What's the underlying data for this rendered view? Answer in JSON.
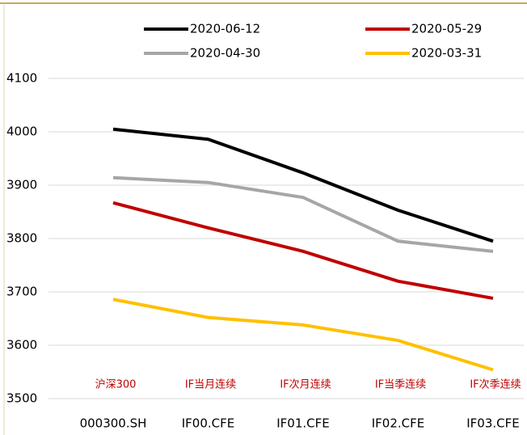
{
  "chart_data": {
    "type": "line",
    "categories": [
      "000300.SH",
      "IF00.CFE",
      "IF01.CFE",
      "IF02.CFE",
      "IF03.CFE"
    ],
    "annotations": [
      "沪深300",
      "IF当月连续",
      "IF次月连续",
      "IF当季连续",
      "IF次季连续"
    ],
    "annotation_color": "#c00000",
    "series": [
      {
        "name": "2020-06-12",
        "color": "#000000",
        "values": [
          4005,
          3986,
          3923,
          3853,
          3795
        ]
      },
      {
        "name": "2020-05-29",
        "color": "#c00000",
        "values": [
          3867,
          3820,
          3776,
          3720,
          3688
        ]
      },
      {
        "name": "2020-04-30",
        "color": "#a6a6a6",
        "values": [
          3914,
          3905,
          3877,
          3795,
          3776
        ]
      },
      {
        "name": "2020-03-31",
        "color": "#ffc000",
        "values": [
          3686,
          3652,
          3638,
          3609,
          3554
        ]
      }
    ],
    "ylim": [
      3500,
      4100
    ],
    "yticks": [
      3500,
      3600,
      3700,
      3800,
      3900,
      4000,
      4100
    ],
    "grid": true
  }
}
